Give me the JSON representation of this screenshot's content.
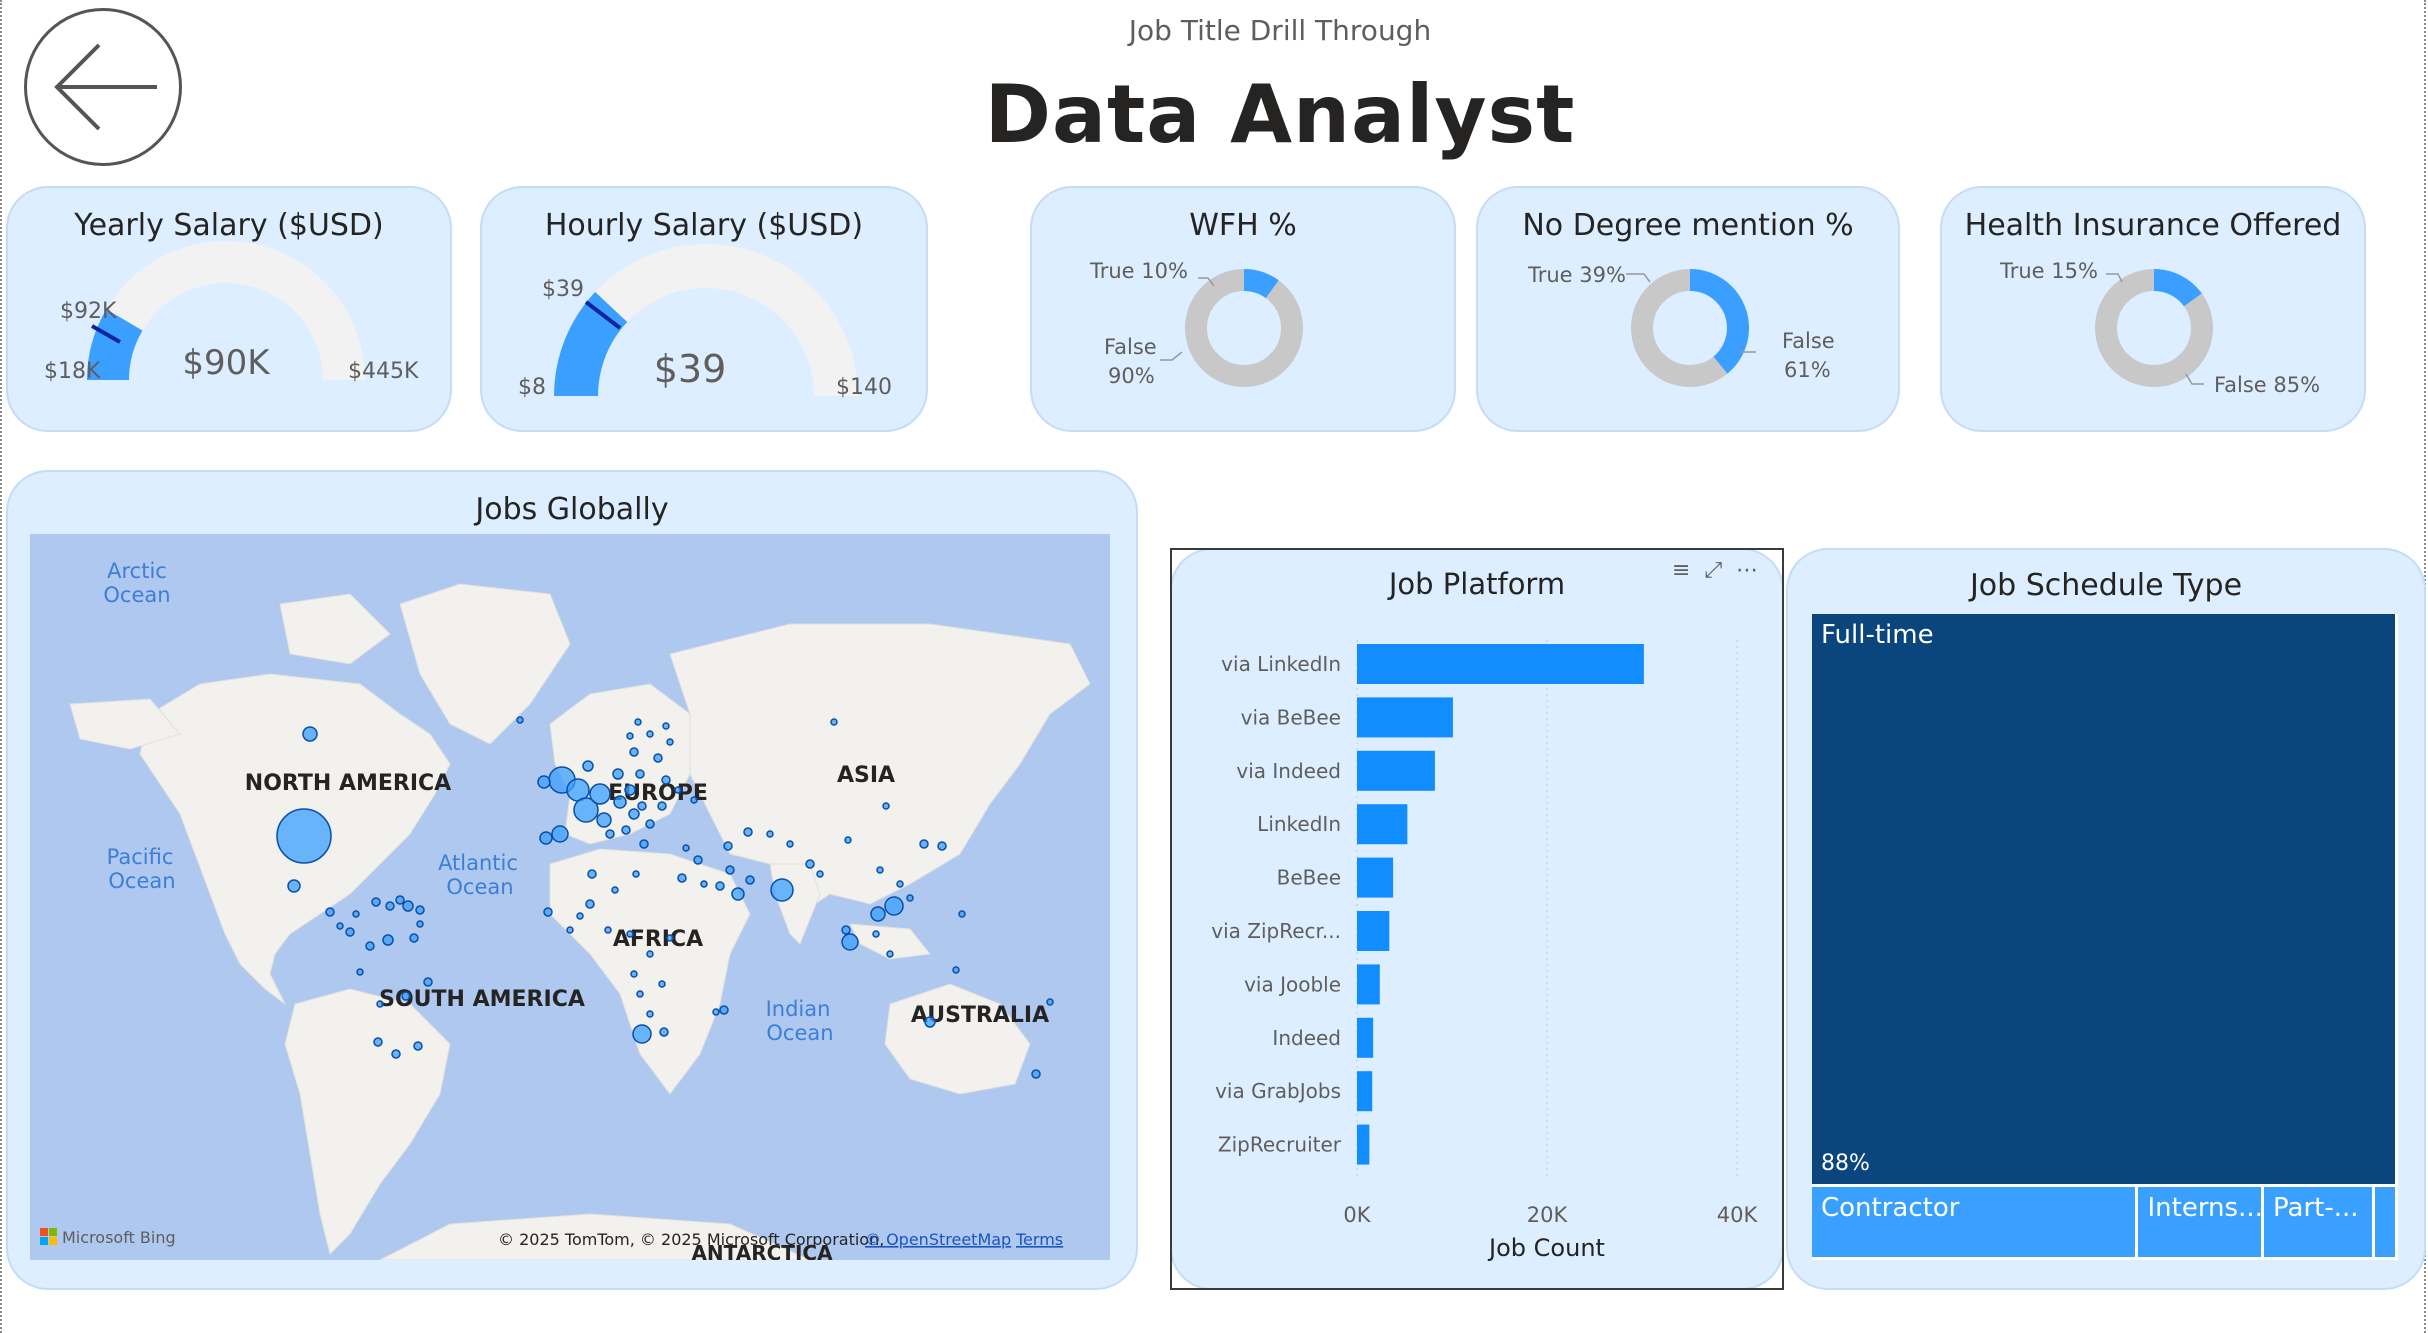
{
  "page": {
    "subtitle": "Job Title Drill Through",
    "title": "Data Analyst"
  },
  "kpis": {
    "yearly": {
      "title": "Yearly Salary ($USD)",
      "min": "$18K",
      "max": "$445K",
      "value": "$90K",
      "target": "$92K",
      "fill_fraction": 0.17
    },
    "hourly": {
      "title": "Hourly Salary ($USD)",
      "min": "$8",
      "max": "$140",
      "value": "$39",
      "target": "$39",
      "fill_fraction": 0.24
    },
    "wfh": {
      "title": "WFH %",
      "true_label": "True 10%",
      "false_label_1": "False",
      "false_label_2": "90%",
      "true_fraction": 0.1
    },
    "degree": {
      "title": "No Degree mention %",
      "true_label": "True 39%",
      "false_label_1": "False",
      "false_label_2": "61%",
      "true_fraction": 0.39
    },
    "health": {
      "title": "Health Insurance Offered",
      "true_label": "True 15%",
      "false_label": "False 85%",
      "true_fraction": 0.15
    }
  },
  "map": {
    "title": "Jobs Globally",
    "labels": {
      "arctic": "Arctic",
      "ocean1": "Ocean",
      "pacific": "Pacific",
      "ocean2": "Ocean",
      "atlantic": "Atlantic",
      "ocean3": "Ocean",
      "indian": "Indian",
      "ocean4": "Ocean",
      "north_america": "NORTH AMERICA",
      "south_america": "SOUTH AMERICA",
      "europe": "EUROPE",
      "africa": "AFRICA",
      "asia": "ASIA",
      "australia": "AUSTRALIA",
      "antarctica": "ANTARCTICA"
    },
    "bing": "Microsoft Bing",
    "copyright": "© 2025 TomTom, © 2025 Microsoft Corporation,",
    "osm": "© OpenStreetMap",
    "terms": "Terms"
  },
  "platform": {
    "icons": [
      "filter-icon",
      "focus-mode-icon",
      "more-options-icon"
    ]
  },
  "chart_data": [
    {
      "type": "bar",
      "title": "Job Platform",
      "categories": [
        "via LinkedIn",
        "via BeBee",
        "via Indeed",
        "LinkedIn",
        "BeBee",
        "via ZipRecr...",
        "via Jooble",
        "Indeed",
        "via GrabJobs",
        "ZipRecruiter"
      ],
      "values": [
        30200,
        10100,
        8200,
        5300,
        3800,
        3400,
        2400,
        1700,
        1600,
        1300
      ],
      "xlabel": "Job Count",
      "xticks": [
        "0K",
        "20K",
        "40K"
      ],
      "xlim": [
        0,
        40000
      ],
      "orientation": "horizontal",
      "color": "#118dff"
    },
    {
      "type": "treemap",
      "title": "Job Schedule Type",
      "categories": [
        "Full-time",
        "Contractor",
        "Interns...",
        "Part-..."
      ],
      "values": [
        88,
        6.5,
        2.5,
        2.2
      ],
      "data_labels": [
        "88%"
      ],
      "colors": [
        "#0a457e",
        "#3aa0ff"
      ]
    }
  ]
}
